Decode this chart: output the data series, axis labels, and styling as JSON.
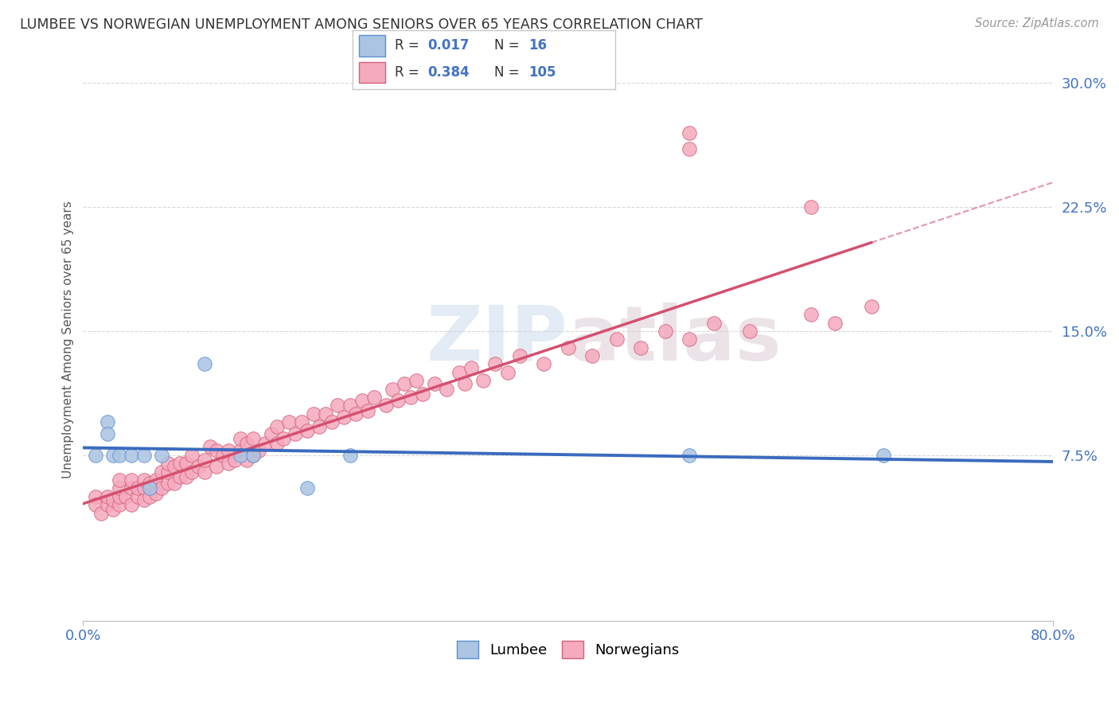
{
  "title": "LUMBEE VS NORWEGIAN UNEMPLOYMENT AMONG SENIORS OVER 65 YEARS CORRELATION CHART",
  "source": "Source: ZipAtlas.com",
  "ylabel": "Unemployment Among Seniors over 65 years",
  "xlim": [
    0.0,
    0.8
  ],
  "ylim": [
    -0.025,
    0.315
  ],
  "xticklabels": [
    "0.0%",
    "80.0%"
  ],
  "ytick_vals": [
    0.075,
    0.15,
    0.225,
    0.3
  ],
  "yticklabels": [
    "7.5%",
    "15.0%",
    "22.5%",
    "30.0%"
  ],
  "lumbee_R": "0.017",
  "lumbee_N": "16",
  "norwegian_R": "0.384",
  "norwegian_N": "105",
  "lumbee_color": "#aac4e2",
  "norwegian_color": "#f5aabe",
  "lumbee_edge_color": "#5b8fd4",
  "norwegian_edge_color": "#d4607a",
  "lumbee_line_color": "#3a6bbf",
  "norwegian_line_color": "#d45070",
  "background_color": "#ffffff",
  "grid_color": "#d8d8d8",
  "watermark_color": "#d0dce8",
  "lumbee_x": [
    0.01,
    0.02,
    0.02,
    0.025,
    0.03,
    0.04,
    0.05,
    0.055,
    0.065,
    0.1,
    0.13,
    0.14,
    0.185,
    0.22,
    0.5,
    0.66
  ],
  "lumbee_y": [
    0.075,
    0.095,
    0.088,
    0.075,
    0.075,
    0.075,
    0.075,
    0.055,
    0.075,
    0.13,
    0.075,
    0.075,
    0.055,
    0.075,
    0.075,
    0.075
  ],
  "norwegian_x": [
    0.01,
    0.01,
    0.015,
    0.02,
    0.02,
    0.025,
    0.025,
    0.03,
    0.03,
    0.03,
    0.03,
    0.035,
    0.04,
    0.04,
    0.04,
    0.045,
    0.045,
    0.05,
    0.05,
    0.05,
    0.055,
    0.055,
    0.06,
    0.06,
    0.065,
    0.065,
    0.07,
    0.07,
    0.07,
    0.075,
    0.075,
    0.08,
    0.08,
    0.085,
    0.085,
    0.09,
    0.09,
    0.095,
    0.1,
    0.1,
    0.105,
    0.11,
    0.11,
    0.115,
    0.12,
    0.12,
    0.125,
    0.13,
    0.13,
    0.135,
    0.135,
    0.14,
    0.14,
    0.145,
    0.15,
    0.155,
    0.16,
    0.16,
    0.165,
    0.17,
    0.175,
    0.18,
    0.185,
    0.19,
    0.195,
    0.2,
    0.205,
    0.21,
    0.215,
    0.22,
    0.225,
    0.23,
    0.235,
    0.24,
    0.25,
    0.255,
    0.26,
    0.265,
    0.27,
    0.275,
    0.28,
    0.29,
    0.3,
    0.31,
    0.315,
    0.32,
    0.33,
    0.34,
    0.35,
    0.36,
    0.38,
    0.4,
    0.42,
    0.44,
    0.46,
    0.48,
    0.5,
    0.52,
    0.55,
    0.6,
    0.62,
    0.65,
    0.5,
    0.5,
    0.6
  ],
  "norwegian_y": [
    0.05,
    0.045,
    0.04,
    0.045,
    0.05,
    0.042,
    0.048,
    0.045,
    0.05,
    0.055,
    0.06,
    0.05,
    0.045,
    0.055,
    0.06,
    0.05,
    0.055,
    0.048,
    0.055,
    0.06,
    0.05,
    0.058,
    0.052,
    0.06,
    0.055,
    0.065,
    0.058,
    0.065,
    0.07,
    0.058,
    0.068,
    0.062,
    0.07,
    0.062,
    0.07,
    0.065,
    0.075,
    0.068,
    0.065,
    0.072,
    0.08,
    0.068,
    0.078,
    0.075,
    0.07,
    0.078,
    0.072,
    0.078,
    0.085,
    0.072,
    0.082,
    0.075,
    0.085,
    0.078,
    0.082,
    0.088,
    0.082,
    0.092,
    0.085,
    0.095,
    0.088,
    0.095,
    0.09,
    0.1,
    0.092,
    0.1,
    0.095,
    0.105,
    0.098,
    0.105,
    0.1,
    0.108,
    0.102,
    0.11,
    0.105,
    0.115,
    0.108,
    0.118,
    0.11,
    0.12,
    0.112,
    0.118,
    0.115,
    0.125,
    0.118,
    0.128,
    0.12,
    0.13,
    0.125,
    0.135,
    0.13,
    0.14,
    0.135,
    0.145,
    0.14,
    0.15,
    0.145,
    0.155,
    0.15,
    0.16,
    0.155,
    0.165,
    0.27,
    0.26,
    0.225
  ]
}
